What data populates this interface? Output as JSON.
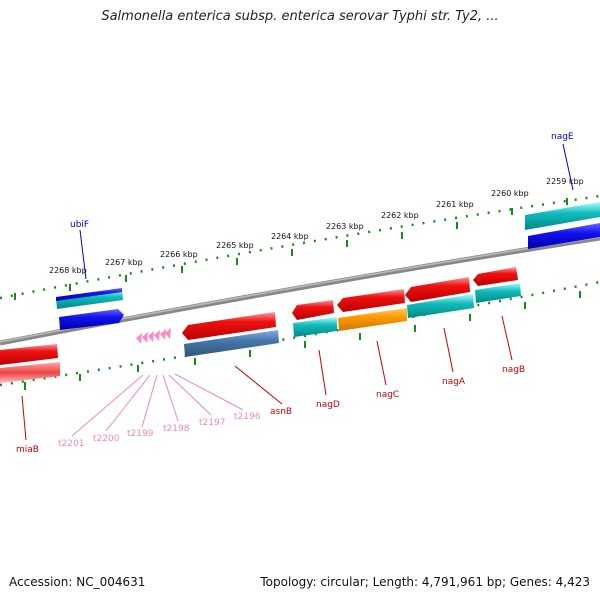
{
  "title": "Salmonella enterica subsp. enterica serovar Typhi str. Ty2, ...",
  "footer": {
    "accession": "Accession: NC_004631",
    "summary": "Topology: circular; Length: 4,791,961 bp; Genes: 4,423"
  },
  "scale_labels": [
    "2268 kbp",
    "2267 kbp",
    "2266 kbp",
    "2265 kbp",
    "2264 kbp",
    "2263 kbp",
    "2262 kbp",
    "2261 kbp",
    "2260 kbp",
    "2259 kbp"
  ],
  "colors": {
    "backbone": "#888888",
    "ticks": "#1a8a1a",
    "red_gene": "#ee1111",
    "cyan_gene": "#11bbbb",
    "blue_gene": "#1111ee",
    "steel_gene": "#4477aa",
    "orange_gene": "#ff9900",
    "trna": "#ff88cc",
    "label_red": "#cc0000",
    "label_blue": "#0000cc",
    "label_pink": "#ee88bb"
  },
  "gene_labels": [
    {
      "name": "ubiF",
      "color": "blue"
    },
    {
      "name": "nagE",
      "color": "blue"
    },
    {
      "name": "miaB",
      "color": "red"
    },
    {
      "name": "asnB",
      "color": "red"
    },
    {
      "name": "nagD",
      "color": "red"
    },
    {
      "name": "nagC",
      "color": "red"
    },
    {
      "name": "nagA",
      "color": "red"
    },
    {
      "name": "nagB",
      "color": "red"
    },
    {
      "name": "t2201",
      "color": "pink"
    },
    {
      "name": "t2200",
      "color": "pink"
    },
    {
      "name": "t2199",
      "color": "pink"
    },
    {
      "name": "t2198",
      "color": "pink"
    },
    {
      "name": "t2197",
      "color": "pink"
    },
    {
      "name": "t2196",
      "color": "pink"
    }
  ]
}
